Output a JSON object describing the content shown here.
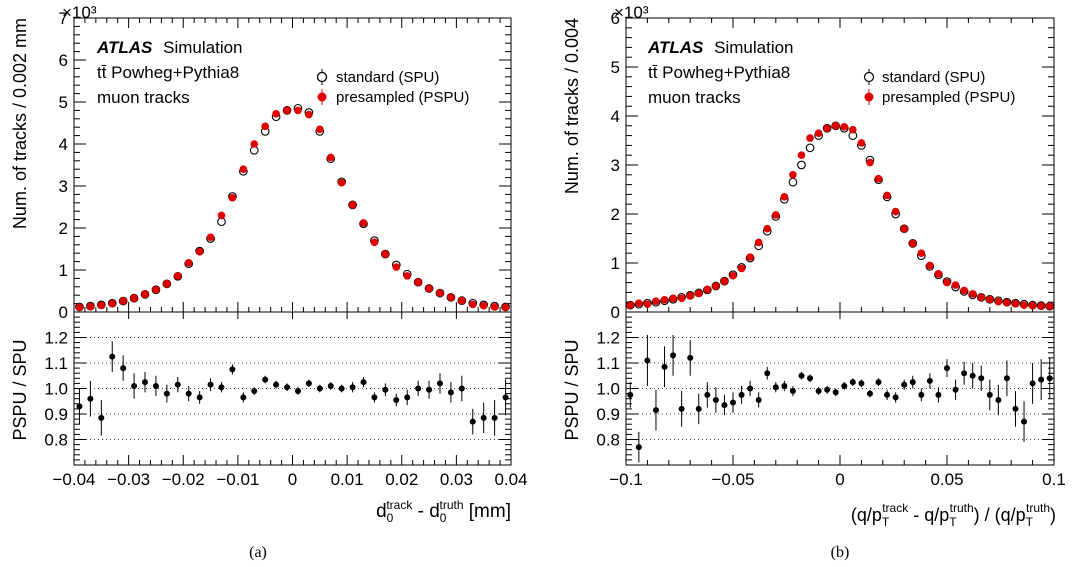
{
  "chart_data": [
    {
      "type": "scatter",
      "panel_label": "(a)",
      "atlas_label": "ATLAS",
      "atlas_suffix": "Simulation",
      "info_lines": [
        "tt̄ Powheg+Pythia8",
        "muon tracks"
      ],
      "legend": [
        "standard (SPU)",
        "presampled (PSPU)"
      ],
      "legend_placement": "top-right",
      "y_multiplier": "×10³",
      "ylabel": "Num. of tracks / 0.002 mm",
      "ratio_ylabel": "PSPU / SPU",
      "xlabel_parts": {
        "d": "d",
        "track_sub": "0",
        "track_sup": "track",
        "minus": " - d",
        "truth_sub": "0",
        "truth_sup": "truth",
        "unit": " [mm]"
      },
      "xlim": [
        -0.04,
        0.04
      ],
      "ylim": [
        0,
        7
      ],
      "ratio_ylim": [
        0.7,
        1.3
      ],
      "x_ticks": [
        "−0.04",
        "−0.03",
        "−0.02",
        "−0.01",
        "0",
        "0.01",
        "0.02",
        "0.03",
        "0.04"
      ],
      "y_ticks": [
        "0",
        "1",
        "2",
        "3",
        "4",
        "5",
        "6",
        "7"
      ],
      "ratio_ticks": [
        "0.8",
        "0.9",
        "1.0",
        "1.1",
        "1.2"
      ],
      "ratio_gridlines": [
        0.8,
        0.9,
        1.0,
        1.1,
        1.2
      ],
      "x": [
        -0.039,
        -0.037,
        -0.035,
        -0.033,
        -0.031,
        -0.029,
        -0.027,
        -0.025,
        -0.023,
        -0.021,
        -0.019,
        -0.017,
        -0.015,
        -0.013,
        -0.011,
        -0.009,
        -0.007,
        -0.005,
        -0.003,
        -0.001,
        0.001,
        0.003,
        0.005,
        0.007,
        0.009,
        0.011,
        0.013,
        0.015,
        0.017,
        0.019,
        0.021,
        0.023,
        0.025,
        0.027,
        0.029,
        0.031,
        0.033,
        0.035,
        0.037,
        0.039
      ],
      "series": [
        {
          "name": "standard (SPU)",
          "marker": "open",
          "values": [
            0.12,
            0.14,
            0.17,
            0.21,
            0.26,
            0.33,
            0.42,
            0.53,
            0.67,
            0.85,
            1.15,
            1.45,
            1.75,
            2.15,
            2.75,
            3.35,
            3.85,
            4.3,
            4.65,
            4.8,
            4.85,
            4.75,
            4.3,
            3.65,
            3.1,
            2.55,
            2.1,
            1.7,
            1.38,
            1.12,
            0.9,
            0.71,
            0.56,
            0.45,
            0.35,
            0.27,
            0.21,
            0.17,
            0.14,
            0.12
          ]
        },
        {
          "name": "presampled (PSPU)",
          "marker": "filled-red",
          "values": [
            0.11,
            0.13,
            0.16,
            0.2,
            0.26,
            0.33,
            0.42,
            0.53,
            0.67,
            0.86,
            1.17,
            1.44,
            1.78,
            2.3,
            2.72,
            3.4,
            4.0,
            4.42,
            4.72,
            4.8,
            4.8,
            4.7,
            4.35,
            3.68,
            3.08,
            2.55,
            2.12,
            1.66,
            1.38,
            1.07,
            0.86,
            0.71,
            0.56,
            0.45,
            0.35,
            0.27,
            0.18,
            0.15,
            0.12,
            0.11
          ]
        },
        {
          "name": "PSPU / SPU",
          "marker": "filled-black",
          "values": [
            0.93,
            0.96,
            0.885,
            1.125,
            1.08,
            1.01,
            1.025,
            1.01,
            0.98,
            1.015,
            0.98,
            0.965,
            1.015,
            1.005,
            1.075,
            0.965,
            0.99,
            1.035,
            1.015,
            1.005,
            0.99,
            1.02,
            1.0,
            1.01,
            1.0,
            1.005,
            1.025,
            0.965,
            0.995,
            0.955,
            0.965,
            1.0,
            0.995,
            1.02,
            0.985,
            1.0,
            0.87,
            0.885,
            0.885,
            0.965
          ],
          "errors": [
            0.07,
            0.07,
            0.07,
            0.06,
            0.05,
            0.05,
            0.04,
            0.04,
            0.035,
            0.03,
            0.03,
            0.025,
            0.025,
            0.02,
            0.02,
            0.02,
            0.015,
            0.015,
            0.015,
            0.015,
            0.015,
            0.015,
            0.015,
            0.015,
            0.015,
            0.02,
            0.02,
            0.02,
            0.025,
            0.025,
            0.03,
            0.03,
            0.035,
            0.04,
            0.04,
            0.05,
            0.05,
            0.06,
            0.07,
            0.07
          ]
        }
      ]
    },
    {
      "type": "scatter",
      "panel_label": "(b)",
      "atlas_label": "ATLAS",
      "atlas_suffix": "Simulation",
      "info_lines": [
        "tt̄ Powheg+Pythia8",
        "muon tracks"
      ],
      "legend": [
        "standard (SPU)",
        "presampled (PSPU)"
      ],
      "legend_placement": "top-right",
      "y_multiplier": "×10³",
      "ylabel": "Num. of tracks / 0.004",
      "ratio_ylabel": "PSPU / SPU",
      "xlabel_parts": {
        "open": "(q/p",
        "t1_sub": "T",
        "t1_sup": "track",
        "minus": " - q/p",
        "t2_sub": "T",
        "t2_sup": "truth",
        "div": ") / (q/p",
        "t3_sub": "T",
        "t3_sup": "truth",
        "close": ")"
      },
      "xlim": [
        -0.1,
        0.1
      ],
      "ylim": [
        0,
        6
      ],
      "ratio_ylim": [
        0.7,
        1.3
      ],
      "x_ticks": [
        "−0.1",
        "−0.05",
        "0",
        "0.05",
        "0.1"
      ],
      "y_ticks": [
        "0",
        "1",
        "2",
        "3",
        "4",
        "5",
        "6"
      ],
      "ratio_ticks": [
        "0.8",
        "0.9",
        "1.0",
        "1.1",
        "1.2"
      ],
      "ratio_gridlines": [
        0.8,
        0.9,
        1.0,
        1.1,
        1.2
      ],
      "x": [
        -0.098,
        -0.094,
        -0.09,
        -0.086,
        -0.082,
        -0.078,
        -0.074,
        -0.07,
        -0.066,
        -0.062,
        -0.058,
        -0.054,
        -0.05,
        -0.046,
        -0.042,
        -0.038,
        -0.034,
        -0.03,
        -0.026,
        -0.022,
        -0.018,
        -0.014,
        -0.01,
        -0.006,
        -0.002,
        0.002,
        0.006,
        0.01,
        0.014,
        0.018,
        0.022,
        0.026,
        0.03,
        0.034,
        0.038,
        0.042,
        0.046,
        0.05,
        0.054,
        0.058,
        0.062,
        0.066,
        0.07,
        0.074,
        0.078,
        0.082,
        0.086,
        0.09,
        0.094,
        0.098
      ],
      "series": [
        {
          "name": "standard (SPU)",
          "marker": "open",
          "values": [
            0.14,
            0.16,
            0.18,
            0.2,
            0.23,
            0.26,
            0.3,
            0.34,
            0.39,
            0.45,
            0.53,
            0.63,
            0.76,
            0.91,
            1.1,
            1.35,
            1.65,
            1.95,
            2.3,
            2.65,
            3.0,
            3.35,
            3.6,
            3.75,
            3.8,
            3.75,
            3.6,
            3.4,
            3.1,
            2.7,
            2.35,
            2.0,
            1.7,
            1.4,
            1.15,
            0.93,
            0.76,
            0.62,
            0.51,
            0.42,
            0.35,
            0.3,
            0.26,
            0.23,
            0.2,
            0.18,
            0.16,
            0.14,
            0.13,
            0.12
          ]
        },
        {
          "name": "presampled (PSPU)",
          "marker": "filled-red",
          "values": [
            0.14,
            0.18,
            0.16,
            0.22,
            0.25,
            0.28,
            0.28,
            0.33,
            0.38,
            0.46,
            0.53,
            0.63,
            0.74,
            0.89,
            1.12,
            1.42,
            1.7,
            1.98,
            2.35,
            2.8,
            3.2,
            3.55,
            3.65,
            3.75,
            3.8,
            3.78,
            3.72,
            3.45,
            3.05,
            2.72,
            2.38,
            2.05,
            1.7,
            1.4,
            1.2,
            0.95,
            0.78,
            0.6,
            0.55,
            0.44,
            0.37,
            0.3,
            0.26,
            0.21,
            0.19,
            0.17,
            0.14,
            0.13,
            0.12,
            0.12
          ]
        },
        {
          "name": "PSPU / SPU",
          "marker": "filled-black",
          "values": [
            0.975,
            0.77,
            1.11,
            0.915,
            1.085,
            1.13,
            0.92,
            1.12,
            0.92,
            0.975,
            0.955,
            0.935,
            0.945,
            0.975,
            1.0,
            0.955,
            1.06,
            1.005,
            1.01,
            0.99,
            1.05,
            1.04,
            0.99,
            0.995,
            0.985,
            1.01,
            1.025,
            1.02,
            0.98,
            1.025,
            0.975,
            0.965,
            1.015,
            1.025,
            0.975,
            1.03,
            0.975,
            1.08,
            0.995,
            1.06,
            1.05,
            1.04,
            0.975,
            0.955,
            1.04,
            0.92,
            0.87,
            1.02,
            1.035,
            1.04
          ],
          "errors": [
            0.05,
            0.06,
            0.1,
            0.08,
            0.08,
            0.08,
            0.07,
            0.07,
            0.06,
            0.05,
            0.05,
            0.04,
            0.04,
            0.035,
            0.03,
            0.03,
            0.025,
            0.02,
            0.02,
            0.02,
            0.015,
            0.015,
            0.015,
            0.015,
            0.015,
            0.015,
            0.015,
            0.015,
            0.015,
            0.015,
            0.02,
            0.02,
            0.02,
            0.025,
            0.025,
            0.03,
            0.03,
            0.035,
            0.04,
            0.045,
            0.05,
            0.05,
            0.06,
            0.06,
            0.07,
            0.07,
            0.08,
            0.08,
            0.08,
            0.08
          ]
        }
      ]
    }
  ]
}
